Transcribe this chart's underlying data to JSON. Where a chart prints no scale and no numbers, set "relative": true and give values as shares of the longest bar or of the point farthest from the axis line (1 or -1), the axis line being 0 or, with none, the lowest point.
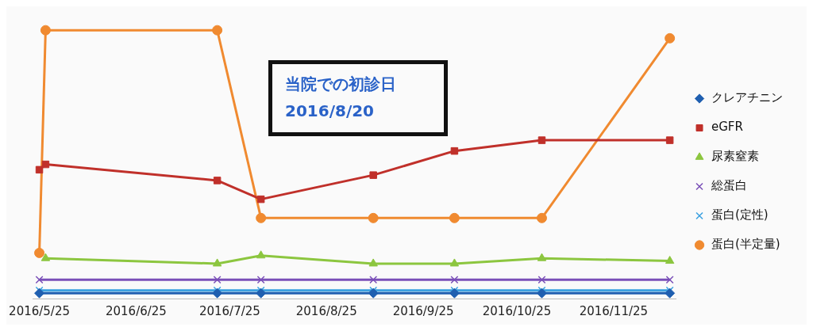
{
  "chart_data": {
    "type": "line",
    "relative": true,
    "x": [
      "2016-05-25",
      "2016-05-27",
      "2016-07-21",
      "2016-08-04",
      "2016-09-09",
      "2016-10-05",
      "2016-11-02",
      "2016-12-13"
    ],
    "xlim": [
      "2016-05-23",
      "2016-12-15"
    ],
    "xticks": [
      {
        "value": "2016-05-25",
        "label": "2016/5/25"
      },
      {
        "value": "2016-06-25",
        "label": "2016/6/25"
      },
      {
        "value": "2016-07-25",
        "label": "2016/7/25"
      },
      {
        "value": "2016-08-25",
        "label": "2016/8/25"
      },
      {
        "value": "2016-09-25",
        "label": "2016/9/25"
      },
      {
        "value": "2016-10-25",
        "label": "2016/10/25"
      },
      {
        "value": "2016-11-25",
        "label": "2016/11/25"
      }
    ],
    "series": [
      {
        "name": "クレアチニン",
        "color": "#1f5fb0",
        "marker": "diamond",
        "values": [
          0.02,
          null,
          0.02,
          0.02,
          0.02,
          0.02,
          0.02,
          0.02
        ]
      },
      {
        "name": "eGFR",
        "color": "#c0302a",
        "marker": "square",
        "values": [
          0.48,
          0.5,
          0.44,
          0.37,
          0.46,
          0.55,
          0.59,
          0.59
        ]
      },
      {
        "name": "尿素窒素",
        "color": "#8cc63f",
        "marker": "triangle",
        "values": [
          null,
          0.15,
          0.13,
          0.16,
          0.13,
          0.13,
          0.15,
          0.14
        ]
      },
      {
        "name": "総蛋白",
        "color": "#7a4fb8",
        "marker": "cross",
        "values": [
          0.07,
          null,
          0.07,
          0.07,
          0.07,
          0.07,
          0.07,
          0.07
        ]
      },
      {
        "name": "蛋白(定性)",
        "color": "#3aa0e0",
        "marker": "cross",
        "values": [
          0.03,
          null,
          0.03,
          0.03,
          0.03,
          0.03,
          0.03,
          0.03
        ]
      },
      {
        "name": "蛋白(半定量)",
        "color": "#f08a30",
        "marker": "circle",
        "values": [
          0.17,
          1,
          1,
          0.3,
          0.3,
          0.3,
          0.3,
          0.97
        ]
      }
    ],
    "legend": "right",
    "annotations": [
      "当院での初診日\n2016/8/20"
    ]
  }
}
